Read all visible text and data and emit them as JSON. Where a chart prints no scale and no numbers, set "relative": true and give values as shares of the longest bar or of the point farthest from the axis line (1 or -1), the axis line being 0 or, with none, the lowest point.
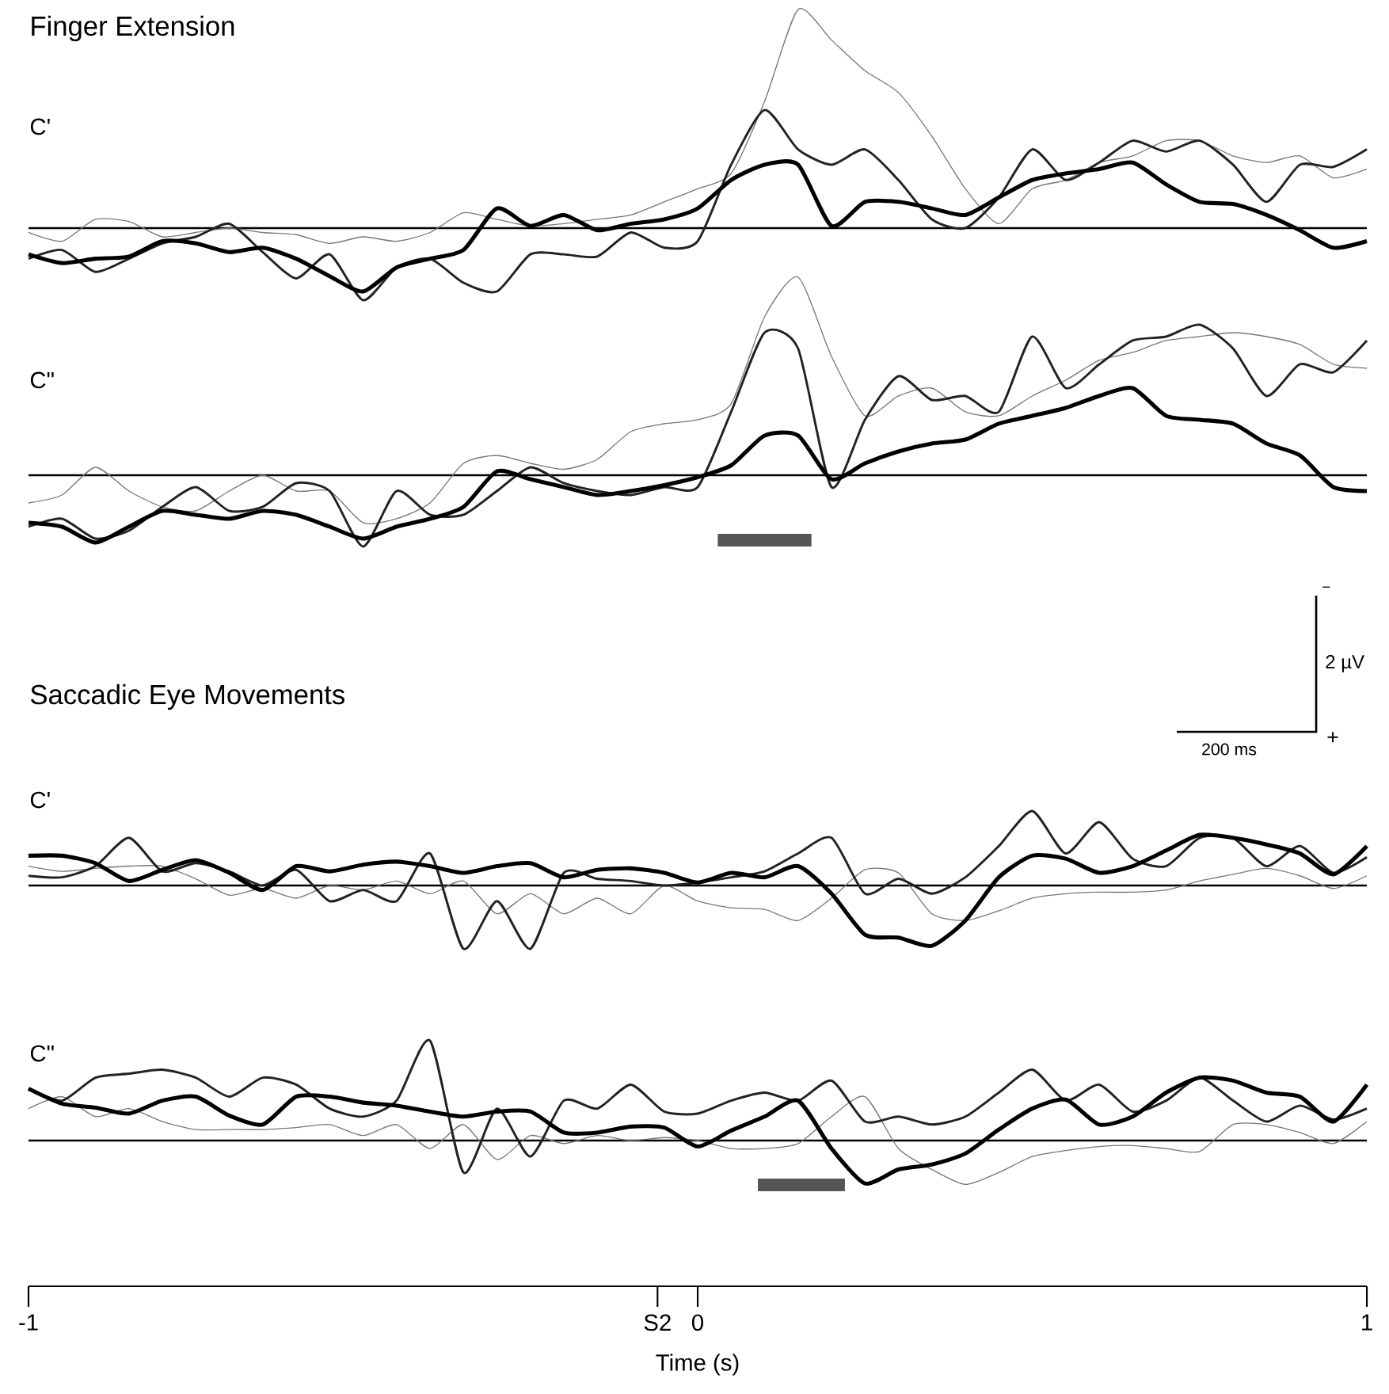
{
  "chart_data": [
    {
      "type": "line",
      "title": "Finger Extension",
      "subtitle": "C'",
      "relative": true,
      "xlim": [
        -1,
        1
      ],
      "tick_labels": false,
      "x": [
        -1,
        -0.95,
        -0.9,
        -0.85,
        -0.8,
        -0.75,
        -0.7,
        -0.65,
        -0.6,
        -0.55,
        -0.5,
        -0.45,
        -0.4,
        -0.35,
        -0.3,
        -0.25,
        -0.2,
        -0.15,
        -0.1,
        -0.05,
        0,
        0.05,
        0.1,
        0.15,
        0.2,
        0.25,
        0.3,
        0.35,
        0.4,
        0.45,
        0.5,
        0.55,
        0.6,
        0.65,
        0.7,
        0.75,
        0.8,
        0.85,
        0.9,
        0.95,
        1
      ],
      "ref_lines": [
        {
          "axis": "y",
          "value": 0
        }
      ],
      "series": [
        {
          "color": "#777777",
          "values": [
            -0.02,
            -0.06,
            0.04,
            0.03,
            -0.04,
            -0.02,
            0,
            -0.02,
            -0.03,
            -0.07,
            -0.04,
            -0.06,
            -0.02,
            0.07,
            0.04,
            0.01,
            0.02,
            0.04,
            0.06,
            0.12,
            0.18,
            0.25,
            0.58,
            1,
            0.86,
            0.72,
            0.62,
            0.42,
            0.18,
            0.02,
            0.18,
            0.22,
            0.3,
            0.33,
            0.4,
            0.4,
            0.33,
            0.3,
            0.33,
            0.23,
            0.27
          ]
        },
        {
          "color": "#222222",
          "values": [
            -0.14,
            -0.1,
            -0.2,
            -0.14,
            -0.07,
            -0.04,
            0.02,
            -0.11,
            -0.23,
            -0.12,
            -0.33,
            -0.18,
            -0.14,
            -0.25,
            -0.29,
            -0.12,
            -0.12,
            -0.13,
            -0.02,
            -0.09,
            -0.06,
            0.29,
            0.54,
            0.36,
            0.29,
            0.36,
            0.22,
            0.04,
            0,
            0.14,
            0.36,
            0.22,
            0.3,
            0.4,
            0.35,
            0.4,
            0.29,
            0.12,
            0.29,
            0.28,
            0.36
          ]
        },
        {
          "color": "#000000",
          "values": [
            -0.12,
            -0.16,
            -0.14,
            -0.13,
            -0.06,
            -0.07,
            -0.11,
            -0.09,
            -0.14,
            -0.22,
            -0.29,
            -0.18,
            -0.14,
            -0.1,
            0.09,
            0.01,
            0.06,
            -0.01,
            0.02,
            0.04,
            0.09,
            0.22,
            0.29,
            0.29,
            0.01,
            0.12,
            0.12,
            0.09,
            0.06,
            0.14,
            0.22,
            0.25,
            0.27,
            0.3,
            0.2,
            0.12,
            0.11,
            0.06,
            -0.01,
            -0.09,
            -0.06
          ]
        }
      ]
    },
    {
      "type": "line",
      "subtitle": "C\"",
      "relative": true,
      "xlim": [
        -1,
        1
      ],
      "tick_labels": false,
      "x": [
        -1,
        -0.95,
        -0.9,
        -0.85,
        -0.8,
        -0.75,
        -0.7,
        -0.65,
        -0.6,
        -0.55,
        -0.5,
        -0.45,
        -0.4,
        -0.35,
        -0.3,
        -0.25,
        -0.2,
        -0.15,
        -0.1,
        -0.05,
        0,
        0.05,
        0.1,
        0.15,
        0.2,
        0.25,
        0.3,
        0.35,
        0.4,
        0.45,
        0.5,
        0.55,
        0.6,
        0.65,
        0.7,
        0.75,
        0.8,
        0.85,
        0.9,
        0.95,
        1
      ],
      "ref_lines": [
        {
          "axis": "y",
          "value": 0
        }
      ],
      "bands": [
        {
          "axis": "x",
          "from": 0.03,
          "to": 0.17,
          "color": "#555555"
        }
      ],
      "annotations": [
        "2 µV",
        "200 ms",
        "−",
        "+"
      ],
      "series": [
        {
          "color": "#777777",
          "values": [
            -0.14,
            -0.1,
            0.04,
            -0.08,
            -0.16,
            -0.18,
            -0.08,
            0,
            -0.08,
            -0.08,
            -0.24,
            -0.22,
            -0.14,
            0.06,
            0.1,
            0.06,
            0.03,
            0.08,
            0.22,
            0.26,
            0.28,
            0.36,
            0.8,
            1,
            0.6,
            0.3,
            0.4,
            0.44,
            0.32,
            0.3,
            0.4,
            0.48,
            0.58,
            0.62,
            0.68,
            0.7,
            0.72,
            0.7,
            0.66,
            0.56,
            0.54
          ]
        },
        {
          "color": "#222222",
          "values": [
            -0.26,
            -0.22,
            -0.32,
            -0.28,
            -0.16,
            -0.06,
            -0.18,
            -0.16,
            -0.04,
            -0.08,
            -0.36,
            -0.08,
            -0.2,
            -0.2,
            -0.08,
            0.04,
            -0.04,
            -0.08,
            -0.1,
            -0.06,
            -0.06,
            0.32,
            0.72,
            0.64,
            -0.06,
            0.28,
            0.5,
            0.38,
            0.4,
            0.32,
            0.7,
            0.44,
            0.56,
            0.68,
            0.7,
            0.76,
            0.64,
            0.4,
            0.56,
            0.52,
            0.68
          ]
        },
        {
          "color": "#000000",
          "values": [
            -0.24,
            -0.26,
            -0.34,
            -0.26,
            -0.18,
            -0.2,
            -0.22,
            -0.18,
            -0.2,
            -0.26,
            -0.32,
            -0.26,
            -0.22,
            -0.16,
            0.02,
            -0.02,
            -0.06,
            -0.1,
            -0.08,
            -0.05,
            -0.01,
            0.05,
            0.2,
            0.2,
            -0.02,
            0.06,
            0.12,
            0.16,
            0.18,
            0.26,
            0.3,
            0.34,
            0.4,
            0.44,
            0.3,
            0.28,
            0.26,
            0.16,
            0.1,
            -0.06,
            -0.08
          ]
        }
      ]
    },
    {
      "type": "line",
      "title": "Saccadic Eye Movements",
      "subtitle": "C'",
      "relative": true,
      "xlim": [
        -1,
        1
      ],
      "tick_labels": false,
      "x": [
        -1,
        -0.95,
        -0.9,
        -0.85,
        -0.8,
        -0.75,
        -0.7,
        -0.65,
        -0.6,
        -0.55,
        -0.5,
        -0.45,
        -0.4,
        -0.35,
        -0.3,
        -0.25,
        -0.2,
        -0.15,
        -0.1,
        -0.05,
        0,
        0.05,
        0.1,
        0.15,
        0.2,
        0.25,
        0.3,
        0.35,
        0.4,
        0.45,
        0.5,
        0.55,
        0.6,
        0.65,
        0.7,
        0.75,
        0.8,
        0.85,
        0.9,
        0.95,
        1
      ],
      "ref_lines": [
        {
          "axis": "y",
          "value": 0
        }
      ],
      "series": [
        {
          "color": "#777777",
          "values": [
            0.26,
            0.19,
            0.23,
            0.26,
            0.26,
            0.09,
            -0.13,
            -0.04,
            -0.17,
            0,
            -0.06,
            0.06,
            -0.11,
            0.06,
            -0.38,
            -0.11,
            -0.38,
            -0.17,
            -0.38,
            0,
            -0.21,
            -0.3,
            -0.32,
            -0.47,
            -0.17,
            0.21,
            0.17,
            -0.38,
            -0.47,
            -0.34,
            -0.17,
            -0.11,
            -0.09,
            -0.09,
            -0.06,
            0.06,
            0.15,
            0.23,
            0.13,
            -0.04,
            0.13
          ]
        },
        {
          "color": "#222222",
          "values": [
            0.13,
            0.11,
            0.26,
            0.64,
            0.19,
            0.3,
            0.19,
            0,
            0.21,
            -0.21,
            -0.06,
            -0.21,
            0.43,
            -0.85,
            -0.21,
            -0.85,
            0.17,
            0.09,
            0.06,
            0,
            0.04,
            0.11,
            0.19,
            0.43,
            0.64,
            -0.11,
            0.09,
            -0.11,
            0.11,
            0.53,
            1,
            0.43,
            0.85,
            0.36,
            0.26,
            0.64,
            0.64,
            0.26,
            0.53,
            0.17,
            0.38
          ]
        },
        {
          "color": "#000000",
          "values": [
            0.4,
            0.4,
            0.3,
            0.06,
            0.21,
            0.34,
            0.17,
            -0.06,
            0.26,
            0.19,
            0.28,
            0.32,
            0.26,
            0.17,
            0.26,
            0.3,
            0.11,
            0.21,
            0.23,
            0.17,
            0.04,
            0.17,
            0.11,
            0.26,
            -0.11,
            -0.66,
            -0.7,
            -0.81,
            -0.47,
            0.11,
            0.4,
            0.36,
            0.17,
            0.26,
            0.47,
            0.68,
            0.64,
            0.55,
            0.43,
            0.15,
            0.53
          ]
        }
      ]
    },
    {
      "type": "line",
      "subtitle": "C\"",
      "relative": true,
      "xlim": [
        -1,
        1
      ],
      "tick_labels": "x",
      "xlabel": "Time (s)",
      "xticks": [
        -1,
        {
          "value": -0.06,
          "label": "S2"
        },
        0,
        1
      ],
      "x": [
        -1,
        -0.95,
        -0.9,
        -0.85,
        -0.8,
        -0.75,
        -0.7,
        -0.65,
        -0.6,
        -0.55,
        -0.5,
        -0.45,
        -0.4,
        -0.35,
        -0.3,
        -0.25,
        -0.2,
        -0.15,
        -0.1,
        -0.05,
        0,
        0.05,
        0.1,
        0.15,
        0.2,
        0.25,
        0.3,
        0.35,
        0.4,
        0.45,
        0.5,
        0.55,
        0.6,
        0.65,
        0.7,
        0.75,
        0.8,
        0.85,
        0.9,
        0.95,
        1
      ],
      "ref_lines": [
        {
          "axis": "y",
          "value": 0
        }
      ],
      "bands": [
        {
          "axis": "x",
          "from": 0.09,
          "to": 0.22,
          "color": "#555555"
        }
      ],
      "series": [
        {
          "color": "#777777",
          "values": [
            0.32,
            0.44,
            0.24,
            0.32,
            0.19,
            0.11,
            0.11,
            0.11,
            0.13,
            0.16,
            0.05,
            0.16,
            -0.08,
            0.16,
            -0.19,
            0.05,
            -0.03,
            0.05,
            0,
            0.03,
            0,
            -0.08,
            -0.08,
            -0.03,
            0.24,
            0.44,
            -0.08,
            -0.29,
            -0.44,
            -0.32,
            -0.16,
            -0.1,
            -0.06,
            -0.05,
            -0.08,
            -0.11,
            0.16,
            0.16,
            0.08,
            -0.03,
            0.19
          ]
        },
        {
          "color": "#222222",
          "values": [
            0.52,
            0.4,
            0.63,
            0.67,
            0.71,
            0.63,
            0.44,
            0.63,
            0.56,
            0.32,
            0.24,
            0.4,
            1,
            -0.32,
            0.32,
            -0.16,
            0.4,
            0.32,
            0.56,
            0.29,
            0.27,
            0.4,
            0.48,
            0.4,
            0.6,
            0.19,
            0.24,
            0.16,
            0.24,
            0.48,
            0.71,
            0.4,
            0.56,
            0.29,
            0.4,
            0.63,
            0.4,
            0.19,
            0.35,
            0.21,
            0.32
          ]
        },
        {
          "color": "#000000",
          "values": [
            0.52,
            0.37,
            0.33,
            0.27,
            0.4,
            0.44,
            0.25,
            0.16,
            0.44,
            0.44,
            0.38,
            0.35,
            0.29,
            0.24,
            0.29,
            0.29,
            0.08,
            0.08,
            0.14,
            0.13,
            -0.06,
            0.1,
            0.24,
            0.4,
            -0.08,
            -0.43,
            -0.29,
            -0.24,
            -0.13,
            0.11,
            0.32,
            0.41,
            0.16,
            0.24,
            0.48,
            0.63,
            0.6,
            0.48,
            0.44,
            0.19,
            0.56
          ]
        }
      ]
    }
  ]
}
